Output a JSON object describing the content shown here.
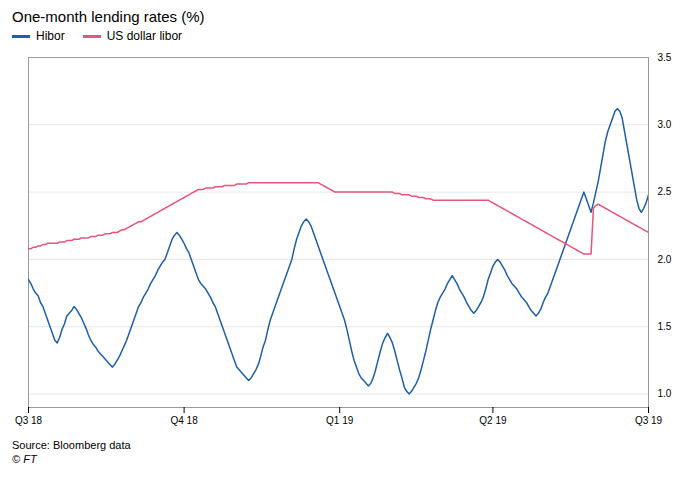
{
  "chart_data": {
    "type": "line",
    "title": "One-month lending rates (%)",
    "annotations": [
      "Source: Bloomberg data",
      "© FT"
    ],
    "categories": [
      "Q3 18",
      null,
      null,
      null,
      null,
      null,
      null,
      null,
      null,
      null,
      null,
      null,
      null,
      null,
      null,
      null,
      null,
      null,
      null,
      null,
      null,
      null,
      null,
      null,
      null,
      null,
      null,
      null,
      null,
      null,
      null,
      null,
      null,
      null,
      null,
      null,
      null,
      null,
      null,
      null,
      null,
      null,
      null,
      null,
      null,
      null,
      null,
      null,
      null,
      null,
      null,
      null,
      null,
      null,
      null,
      null,
      null,
      null,
      null,
      null,
      null,
      null,
      null,
      null,
      null,
      "Q4 18",
      null,
      null,
      null,
      null,
      null,
      null,
      null,
      null,
      null,
      null,
      null,
      null,
      null,
      null,
      null,
      null,
      null,
      null,
      null,
      null,
      null,
      null,
      null,
      null,
      null,
      null,
      null,
      null,
      null,
      null,
      null,
      null,
      null,
      null,
      null,
      null,
      null,
      null,
      null,
      null,
      null,
      null,
      null,
      null,
      null,
      null,
      null,
      null,
      null,
      null,
      null,
      null,
      null,
      null,
      null,
      null,
      null,
      null,
      null,
      null,
      null,
      null,
      null,
      null,
      "Q1 19",
      null,
      null,
      null,
      null,
      null,
      null,
      null,
      null,
      null,
      null,
      null,
      null,
      null,
      null,
      null,
      null,
      null,
      null,
      null,
      null,
      null,
      null,
      null,
      null,
      null,
      null,
      null,
      null,
      null,
      null,
      null,
      null,
      null,
      null,
      null,
      null,
      null,
      null,
      null,
      null,
      null,
      null,
      null,
      null,
      null,
      null,
      null,
      null,
      null,
      null,
      null,
      null,
      null,
      null,
      null,
      null,
      null,
      null,
      null,
      null,
      null,
      null,
      null,
      "Q2 19",
      null,
      null,
      null,
      null,
      null,
      null,
      null,
      null,
      null,
      null,
      null,
      null,
      null,
      null,
      null,
      null,
      null,
      null,
      null,
      null,
      null,
      null,
      null,
      null,
      null,
      null,
      null,
      null,
      null,
      null,
      null,
      null,
      null,
      null,
      null,
      null,
      null,
      null,
      null,
      null,
      null,
      null,
      null,
      null,
      null,
      null,
      null,
      null,
      null,
      null,
      null,
      null,
      null,
      null,
      null,
      null,
      null,
      null,
      null,
      null,
      null,
      null,
      null,
      null,
      "Q3 19"
    ],
    "series": [
      {
        "name": "Hibor",
        "color": "#1f5fa6",
        "values": [
          1.85,
          1.82,
          1.78,
          1.75,
          1.73,
          1.68,
          1.65,
          1.6,
          1.55,
          1.5,
          1.45,
          1.4,
          1.38,
          1.42,
          1.48,
          1.52,
          1.58,
          1.6,
          1.62,
          1.65,
          1.63,
          1.6,
          1.57,
          1.53,
          1.49,
          1.44,
          1.4,
          1.37,
          1.35,
          1.32,
          1.3,
          1.28,
          1.26,
          1.24,
          1.22,
          1.2,
          1.22,
          1.25,
          1.28,
          1.32,
          1.36,
          1.4,
          1.45,
          1.5,
          1.55,
          1.6,
          1.65,
          1.68,
          1.72,
          1.75,
          1.78,
          1.82,
          1.85,
          1.88,
          1.92,
          1.95,
          1.98,
          2.0,
          2.05,
          2.1,
          2.15,
          2.18,
          2.2,
          2.18,
          2.15,
          2.12,
          2.08,
          2.05,
          2.0,
          1.95,
          1.9,
          1.85,
          1.82,
          1.8,
          1.78,
          1.75,
          1.72,
          1.68,
          1.65,
          1.6,
          1.55,
          1.5,
          1.45,
          1.4,
          1.35,
          1.3,
          1.25,
          1.2,
          1.18,
          1.16,
          1.14,
          1.12,
          1.1,
          1.12,
          1.15,
          1.18,
          1.22,
          1.28,
          1.35,
          1.4,
          1.48,
          1.55,
          1.6,
          1.65,
          1.7,
          1.75,
          1.8,
          1.85,
          1.9,
          1.95,
          2.0,
          2.08,
          2.15,
          2.2,
          2.25,
          2.28,
          2.3,
          2.28,
          2.25,
          2.2,
          2.15,
          2.1,
          2.05,
          2.0,
          1.95,
          1.9,
          1.85,
          1.8,
          1.75,
          1.7,
          1.65,
          1.6,
          1.55,
          1.48,
          1.4,
          1.32,
          1.25,
          1.2,
          1.15,
          1.12,
          1.1,
          1.08,
          1.06,
          1.08,
          1.12,
          1.18,
          1.25,
          1.32,
          1.38,
          1.42,
          1.45,
          1.42,
          1.38,
          1.32,
          1.25,
          1.18,
          1.12,
          1.05,
          1.02,
          1.0,
          1.02,
          1.05,
          1.08,
          1.12,
          1.18,
          1.25,
          1.32,
          1.4,
          1.48,
          1.55,
          1.62,
          1.68,
          1.72,
          1.75,
          1.78,
          1.82,
          1.85,
          1.88,
          1.85,
          1.82,
          1.78,
          1.75,
          1.72,
          1.68,
          1.65,
          1.62,
          1.6,
          1.62,
          1.65,
          1.68,
          1.72,
          1.78,
          1.85,
          1.9,
          1.95,
          1.98,
          2.0,
          1.98,
          1.95,
          1.92,
          1.88,
          1.85,
          1.82,
          1.8,
          1.78,
          1.75,
          1.72,
          1.7,
          1.68,
          1.65,
          1.62,
          1.6,
          1.58,
          1.6,
          1.63,
          1.68,
          1.72,
          1.75,
          1.8,
          1.85,
          1.9,
          1.95,
          2.0,
          2.05,
          2.1,
          2.15,
          2.2,
          2.25,
          2.3,
          2.35,
          2.4,
          2.45,
          2.5,
          2.45,
          2.4,
          2.35,
          2.42,
          2.5,
          2.58,
          2.68,
          2.78,
          2.88,
          2.95,
          3.0,
          3.05,
          3.1,
          3.12,
          3.1,
          3.05,
          2.95,
          2.85,
          2.75,
          2.65,
          2.55,
          2.45,
          2.38,
          2.35,
          2.38,
          2.42,
          2.48
        ]
      },
      {
        "name": "US dollar libor",
        "color": "#e8547a",
        "values": [
          2.08,
          2.08,
          2.09,
          2.09,
          2.1,
          2.1,
          2.11,
          2.11,
          2.12,
          2.12,
          2.12,
          2.12,
          2.12,
          2.13,
          2.13,
          2.13,
          2.14,
          2.14,
          2.14,
          2.15,
          2.15,
          2.15,
          2.16,
          2.16,
          2.16,
          2.16,
          2.17,
          2.17,
          2.17,
          2.18,
          2.18,
          2.18,
          2.19,
          2.19,
          2.19,
          2.2,
          2.2,
          2.2,
          2.21,
          2.22,
          2.22,
          2.23,
          2.24,
          2.25,
          2.26,
          2.27,
          2.28,
          2.28,
          2.29,
          2.3,
          2.31,
          2.32,
          2.33,
          2.34,
          2.35,
          2.36,
          2.37,
          2.38,
          2.39,
          2.4,
          2.41,
          2.42,
          2.43,
          2.44,
          2.45,
          2.46,
          2.47,
          2.48,
          2.49,
          2.5,
          2.51,
          2.52,
          2.52,
          2.52,
          2.53,
          2.53,
          2.53,
          2.53,
          2.54,
          2.54,
          2.54,
          2.54,
          2.55,
          2.55,
          2.55,
          2.55,
          2.55,
          2.56,
          2.56,
          2.56,
          2.56,
          2.56,
          2.57,
          2.57,
          2.57,
          2.57,
          2.57,
          2.57,
          2.57,
          2.57,
          2.57,
          2.57,
          2.57,
          2.57,
          2.57,
          2.57,
          2.57,
          2.57,
          2.57,
          2.57,
          2.57,
          2.57,
          2.57,
          2.57,
          2.57,
          2.57,
          2.57,
          2.57,
          2.57,
          2.57,
          2.57,
          2.57,
          2.56,
          2.55,
          2.54,
          2.53,
          2.52,
          2.51,
          2.5,
          2.5,
          2.5,
          2.5,
          2.5,
          2.5,
          2.5,
          2.5,
          2.5,
          2.5,
          2.5,
          2.5,
          2.5,
          2.5,
          2.5,
          2.5,
          2.5,
          2.5,
          2.5,
          2.5,
          2.5,
          2.5,
          2.5,
          2.5,
          2.5,
          2.49,
          2.49,
          2.49,
          2.48,
          2.48,
          2.48,
          2.48,
          2.47,
          2.47,
          2.47,
          2.46,
          2.46,
          2.46,
          2.45,
          2.45,
          2.45,
          2.44,
          2.44,
          2.44,
          2.44,
          2.44,
          2.44,
          2.44,
          2.44,
          2.44,
          2.44,
          2.44,
          2.44,
          2.44,
          2.44,
          2.44,
          2.44,
          2.44,
          2.44,
          2.44,
          2.44,
          2.44,
          2.44,
          2.44,
          2.44,
          2.43,
          2.42,
          2.41,
          2.4,
          2.39,
          2.38,
          2.37,
          2.36,
          2.35,
          2.34,
          2.33,
          2.32,
          2.31,
          2.3,
          2.29,
          2.28,
          2.27,
          2.26,
          2.25,
          2.24,
          2.23,
          2.22,
          2.21,
          2.2,
          2.19,
          2.18,
          2.17,
          2.16,
          2.15,
          2.14,
          2.13,
          2.12,
          2.11,
          2.1,
          2.09,
          2.08,
          2.07,
          2.06,
          2.05,
          2.04,
          2.04,
          2.04,
          2.04,
          2.38,
          2.4,
          2.41,
          2.4,
          2.39,
          2.38,
          2.37,
          2.36,
          2.35,
          2.34,
          2.33,
          2.32,
          2.31,
          2.3,
          2.29,
          2.28,
          2.27,
          2.26,
          2.25,
          2.24,
          2.23,
          2.22,
          2.21,
          2.2
        ]
      }
    ],
    "ylim": [
      0.9,
      3.5
    ],
    "yticks": [
      {
        "value": 1.0,
        "label": "1.0"
      },
      1.5,
      {
        "value": 2.0,
        "label": "2.0"
      },
      2.5,
      {
        "value": 3.0,
        "label": "3.0"
      },
      3.5
    ],
    "grid": true,
    "legend": "upper left"
  }
}
